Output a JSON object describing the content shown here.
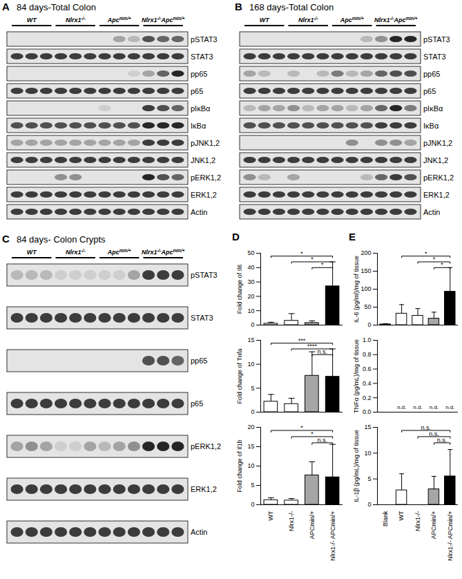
{
  "blots": [
    {
      "panel": "A",
      "title": "84 days-Total Colon",
      "groups": [
        "WT",
        "Nlrx1-/-",
        "Apcmin/+",
        "Nlrx1-/-Apcmin/+"
      ],
      "rows": [
        {
          "label": "pSTAT3",
          "lanes": [
            0,
            0,
            0,
            0,
            0,
            0,
            0,
            0.3,
            0.2,
            0.7,
            0.6,
            0.6
          ]
        },
        {
          "label": "STAT3",
          "lanes": [
            0.8,
            0.8,
            0.8,
            0.8,
            0.8,
            0.8,
            0.8,
            0.8,
            0.8,
            0.8,
            0.8,
            0.8
          ]
        },
        {
          "label": "pp65",
          "lanes": [
            0,
            0,
            0,
            0,
            0,
            0,
            0,
            0,
            0.1,
            0.3,
            0.6,
            0.9
          ]
        },
        {
          "label": "p65",
          "lanes": [
            0.8,
            0.8,
            0.8,
            0.8,
            0.8,
            0.8,
            0.8,
            0.8,
            0.8,
            0.8,
            0.8,
            0.8
          ]
        },
        {
          "label": "pIκBα",
          "lanes": [
            0,
            0,
            0,
            0,
            0,
            0,
            0.1,
            0,
            0,
            0.8,
            0.7,
            0.6
          ]
        },
        {
          "label": "IκBα",
          "lanes": [
            0.7,
            0.7,
            0.7,
            0.7,
            0.7,
            0.7,
            0.7,
            0.7,
            0.7,
            0.9,
            0.9,
            0.9
          ]
        },
        {
          "label": "pJNK1,2",
          "lanes": [
            0.3,
            0.3,
            0.3,
            0.3,
            0.3,
            0.3,
            0.3,
            0.3,
            0.3,
            0.8,
            0.8,
            0.8
          ]
        },
        {
          "label": "JNK1,2",
          "lanes": [
            0.8,
            0.8,
            0.8,
            0.8,
            0.8,
            0.8,
            0.8,
            0.8,
            0.8,
            0.8,
            0.8,
            0.8
          ]
        },
        {
          "label": "pERK1,2",
          "lanes": [
            0,
            0,
            0,
            0.4,
            0.4,
            0,
            0,
            0,
            0,
            0.9,
            0.7,
            0.6
          ]
        },
        {
          "label": "ERK1,2",
          "lanes": [
            0.8,
            0.8,
            0.8,
            0.8,
            0.8,
            0.8,
            0.8,
            0.8,
            0.8,
            0.8,
            0.8,
            0.8
          ]
        },
        {
          "label": "Actin",
          "lanes": [
            0.8,
            0.8,
            0.8,
            0.8,
            0.8,
            0.8,
            0.8,
            0.8,
            0.8,
            0.8,
            0.8,
            0.8
          ]
        }
      ]
    },
    {
      "panel": "B",
      "title": "168 days-Total Colon",
      "groups": [
        "WT",
        "Nlrx1-/-",
        "Apcmin/+",
        "Nlrx1-/-Apcmin/+"
      ],
      "rows": [
        {
          "label": "pSTAT3",
          "lanes": [
            0,
            0,
            0,
            0,
            0,
            0,
            0,
            0,
            0.2,
            0.4,
            0.9,
            0.9
          ]
        },
        {
          "label": "STAT3",
          "lanes": [
            0.8,
            0.8,
            0.8,
            0.8,
            0.8,
            0.8,
            0.8,
            0.8,
            0.8,
            0.8,
            0.8,
            0.8
          ]
        },
        {
          "label": "pp65",
          "lanes": [
            0.3,
            0.2,
            0,
            0.2,
            0,
            0.2,
            0.5,
            0.2,
            0.3,
            0.6,
            0.7,
            0.7
          ]
        },
        {
          "label": "p65",
          "lanes": [
            0.8,
            0.8,
            0.8,
            0.8,
            0.8,
            0.8,
            0.8,
            0.8,
            0.8,
            0.8,
            0.8,
            0.8
          ]
        },
        {
          "label": "pIκBα",
          "lanes": [
            0.2,
            0.3,
            0.3,
            0.4,
            0.2,
            0.3,
            0.3,
            0.2,
            0.3,
            0.6,
            0.9,
            0.5
          ]
        },
        {
          "label": "IκBα",
          "lanes": [
            0.7,
            0.7,
            0.7,
            0.7,
            0.7,
            0.7,
            0.7,
            0.7,
            0.7,
            0.8,
            0.8,
            0.8
          ]
        },
        {
          "label": "pJNK1,2",
          "lanes": [
            0,
            0,
            0,
            0,
            0,
            0,
            0,
            0.4,
            0,
            0.4,
            0.4,
            0.3
          ]
        },
        {
          "label": "JNK1,2",
          "lanes": [
            0.8,
            0.8,
            0.8,
            0.8,
            0.8,
            0.8,
            0.8,
            0.8,
            0.8,
            0.8,
            0.8,
            0.8
          ]
        },
        {
          "label": "pERK1,2",
          "lanes": [
            0.4,
            0.2,
            0,
            0.3,
            0,
            0,
            0,
            0,
            0.2,
            0.6,
            0.8,
            0.7
          ]
        },
        {
          "label": "ERK1,2",
          "lanes": [
            0.8,
            0.8,
            0.8,
            0.8,
            0.8,
            0.8,
            0.8,
            0.8,
            0.8,
            0.8,
            0.8,
            0.8
          ]
        },
        {
          "label": "Actin",
          "lanes": [
            0.8,
            0.8,
            0.8,
            0.8,
            0.8,
            0.8,
            0.8,
            0.8,
            0.8,
            0.8,
            0.8,
            0.8
          ]
        }
      ]
    },
    {
      "panel": "C",
      "title": "84 days- Colon Crypts",
      "groups": [
        "WT",
        "Nlrx1-/-",
        "Apcmin/+",
        "Nlrx1-/-Apcmin/+"
      ],
      "rows": [
        {
          "label": "pSTAT3",
          "lanes": [
            0.2,
            0.2,
            0.2,
            0.1,
            0.1,
            0.1,
            0.1,
            0.1,
            0.3,
            0.8,
            0.8,
            0.8
          ]
        },
        {
          "label": "STAT3",
          "lanes": [
            0.8,
            0.8,
            0.8,
            0.8,
            0.8,
            0.8,
            0.8,
            0.8,
            0.8,
            0.8,
            0.8,
            0.8
          ]
        },
        {
          "label": "pp65",
          "lanes": [
            0,
            0,
            0,
            0,
            0,
            0,
            0,
            0,
            0,
            0.7,
            0.7,
            0.6
          ]
        },
        {
          "label": "p65",
          "lanes": [
            0.8,
            0.8,
            0.8,
            0.8,
            0.8,
            0.8,
            0.8,
            0.8,
            0.8,
            0.8,
            0.8,
            0.8
          ]
        },
        {
          "label": "pERK1,2",
          "lanes": [
            0.3,
            0.4,
            0.3,
            0.1,
            0.1,
            0.3,
            0.2,
            0.3,
            0.4,
            0.9,
            0.9,
            0.9
          ]
        },
        {
          "label": "ERK1,2",
          "lanes": [
            0.8,
            0.8,
            0.8,
            0.8,
            0.8,
            0.8,
            0.8,
            0.8,
            0.8,
            0.8,
            0.8,
            0.8
          ]
        },
        {
          "label": "Actin",
          "lanes": [
            0.8,
            0.8,
            0.8,
            0.8,
            0.8,
            0.8,
            0.8,
            0.8,
            0.8,
            0.8,
            0.8,
            0.8
          ]
        }
      ]
    }
  ],
  "panel_labels": [
    "D",
    "E"
  ],
  "chart_data": [
    {
      "type": "bar",
      "ylabel": "Fold change of Il6",
      "categories": [
        "WT",
        "Nlrx1-/-",
        "APCmin/+",
        "Nlrx1-/- APCmin/+"
      ],
      "values": [
        1,
        3,
        1.5,
        27
      ],
      "errors": [
        1,
        5,
        1.5,
        17
      ],
      "colors": [
        "#ffffff",
        "#ffffff",
        "#a6a6a6",
        "#000000"
      ],
      "ylim": [
        0,
        50
      ],
      "yticks": [
        0,
        10,
        20,
        30,
        40,
        50
      ],
      "tick_labels": "y",
      "annotations": [
        {
          "from": 0,
          "to": 3,
          "text": "*"
        },
        {
          "from": 1,
          "to": 3,
          "text": "*"
        },
        {
          "from": 2,
          "to": 3,
          "text": "*"
        }
      ]
    },
    {
      "type": "bar",
      "ylabel": "Fold change of Tnfa",
      "categories": [
        "WT",
        "Nlrx1-/-",
        "APCmin/+",
        "Nlrx1-/- APCmin/+"
      ],
      "values": [
        2.2,
        1.7,
        7.6,
        7.4
      ],
      "errors": [
        1.5,
        1.2,
        5,
        5.8
      ],
      "colors": [
        "#ffffff",
        "#ffffff",
        "#a6a6a6",
        "#000000"
      ],
      "ylim": [
        0,
        15
      ],
      "yticks": [
        0,
        5,
        10,
        15
      ],
      "tick_labels": "y",
      "annotations": [
        {
          "from": 0,
          "to": 3,
          "text": "***"
        },
        {
          "from": 1,
          "to": 3,
          "text": "****"
        },
        {
          "from": 2,
          "to": 3,
          "text": "n.s."
        }
      ]
    },
    {
      "type": "bar",
      "ylabel": "Fold change of Il1b",
      "categories": [
        "WT",
        "Nlrx1-/-",
        "APCmin/+",
        "Nlrx1-/- APCmin/+"
      ],
      "values": [
        1.2,
        1.1,
        7.6,
        7.1
      ],
      "errors": [
        0.6,
        0.5,
        3.5,
        8.5
      ],
      "colors": [
        "#ffffff",
        "#ffffff",
        "#a6a6a6",
        "#000000"
      ],
      "ylim": [
        0,
        20
      ],
      "yticks": [
        0,
        5,
        10,
        15,
        20
      ],
      "annotations": [
        {
          "from": 0,
          "to": 3,
          "text": "*"
        },
        {
          "from": 1,
          "to": 3,
          "text": "*"
        },
        {
          "from": 2,
          "to": 3,
          "text": "n.s."
        }
      ]
    },
    {
      "type": "bar",
      "ylabel": "IL-6 (pg/ml)/mg of tissue",
      "categories": [
        "Blank",
        "WT",
        "Nlrx1-/-",
        "APCmin/+",
        "Nlrx1-/- APCmin/+"
      ],
      "values": [
        2,
        32,
        26,
        18,
        93
      ],
      "errors": [
        2,
        25,
        20,
        18,
        67
      ],
      "colors": [
        "#ffffff",
        "#ffffff",
        "#ffffff",
        "#a6a6a6",
        "#000000"
      ],
      "ylim": [
        0,
        200
      ],
      "yticks": [
        0,
        50,
        100,
        150,
        200
      ],
      "tick_labels": "y",
      "annotations": [
        {
          "from": 1,
          "to": 4,
          "text": "*"
        },
        {
          "from": 2,
          "to": 4,
          "text": "*"
        },
        {
          "from": 3,
          "to": 4,
          "text": "*"
        }
      ]
    },
    {
      "type": "bar",
      "ylabel": "TNFα (pg/mL)/mg of tissue",
      "categories": [
        "Blank",
        "WT",
        "Nlrx1-/-",
        "APCmin/+",
        "Nlrx1-/- APCmin/+"
      ],
      "values": [
        null,
        null,
        null,
        null,
        null
      ],
      "value_labels": [
        null,
        "n.d.",
        "n.d.",
        "n.d.",
        "n.d."
      ],
      "colors": [
        "#ffffff",
        "#ffffff",
        "#ffffff",
        "#a6a6a6",
        "#000000"
      ],
      "ylim": [
        0,
        1
      ],
      "yticks": [
        {
          "value": 0,
          "label": "0.0"
        },
        0.2,
        0.4,
        0.6,
        0.8,
        {
          "value": 1,
          "label": "1.0"
        }
      ],
      "tick_labels": "y"
    },
    {
      "type": "bar",
      "ylabel": "IL-1β (pg/mL)/mg of tissue",
      "categories": [
        "Blank",
        "WT",
        "Nlrx1-/-",
        "APCmin/+",
        "Nlrx1-/- APCmin/+"
      ],
      "values": [
        0,
        2.8,
        0,
        3,
        5.5
      ],
      "errors": [
        0,
        3.2,
        0,
        2.5,
        5.2
      ],
      "colors": [
        "#ffffff",
        "#ffffff",
        "#ffffff",
        "#a6a6a6",
        "#000000"
      ],
      "ylim": [
        0,
        15
      ],
      "yticks": [
        0,
        5,
        10,
        15
      ],
      "annotations": [
        {
          "from": 1,
          "to": 4,
          "text": "n.s."
        },
        {
          "from": 2,
          "to": 4,
          "text": "n.s."
        },
        {
          "from": 3,
          "to": 4,
          "text": "n.s."
        }
      ]
    }
  ]
}
